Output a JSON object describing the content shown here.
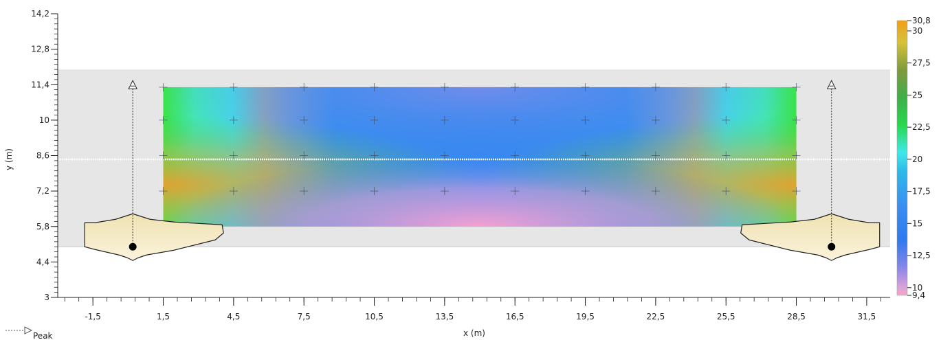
{
  "chart_data": {
    "type": "heatmap",
    "xlabel": "x (m)",
    "ylabel": "y (m)",
    "xlim": [
      -3,
      32.5
    ],
    "ylim": [
      3,
      14.2
    ],
    "x_ticks": [
      "-1,5",
      "1,5",
      "4,5",
      "7,5",
      "10,5",
      "13,5",
      "16,5",
      "19,5",
      "22,5",
      "25,5",
      "28,5",
      "31,5"
    ],
    "x_tick_values": [
      -1.5,
      1.5,
      4.5,
      7.5,
      10.5,
      13.5,
      16.5,
      19.5,
      22.5,
      25.5,
      28.5,
      31.5
    ],
    "y_ticks": [
      "3",
      "4,4",
      "5,8",
      "7,2",
      "8,6",
      "10",
      "11,4",
      "12,8",
      "14,2"
    ],
    "y_tick_values": [
      3,
      4.4,
      5.8,
      7.2,
      8.6,
      10,
      11.4,
      12.8,
      14.2
    ],
    "room": {
      "x": [
        -3,
        32.5
      ],
      "y": [
        5,
        12
      ]
    },
    "heatmap_area": {
      "x": [
        1.5,
        28.5
      ],
      "y": [
        5.8,
        11.3
      ]
    },
    "grid_points": {
      "x": [
        1.5,
        4.5,
        7.5,
        10.5,
        13.5,
        16.5,
        19.5,
        22.5,
        25.5,
        28.5
      ],
      "y": [
        7.2,
        8.6,
        10,
        11.3
      ]
    },
    "sources": [
      {
        "x": 0.2,
        "y": 5.0
      },
      {
        "x": 30.0,
        "y": 5.0
      }
    ],
    "colorbar": {
      "min": 9.4,
      "max": 30.8,
      "ticks": [
        "30,8",
        "30",
        "27,5",
        "25",
        "22,5",
        "20",
        "17,5",
        "15",
        "12,5",
        "10",
        "9,4"
      ],
      "tick_values": [
        30.8,
        30,
        27.5,
        25,
        22.5,
        20,
        17.5,
        15,
        12.5,
        10,
        9.4
      ],
      "colors": [
        "#f4a6c6",
        "#a98ee0",
        "#2e7cf0",
        "#3a8ff0",
        "#2fb8e8",
        "#3fe8e8",
        "#30d858",
        "#3fae4a",
        "#8a9a3c",
        "#d4c23a",
        "#f0a018"
      ]
    },
    "legend": {
      "label": "Peak",
      "placement": "bottom-left"
    }
  }
}
